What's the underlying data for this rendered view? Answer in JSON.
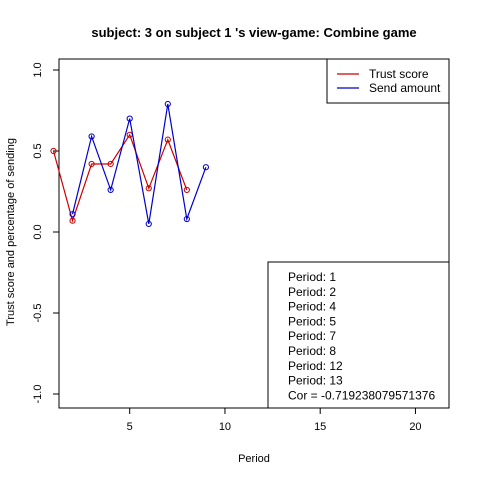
{
  "chart_data": {
    "type": "line",
    "title": "subject:  3  on subject  1 's view-game:  Combine game",
    "xlabel": "Period",
    "ylabel": "Trust score and percentage of sending",
    "xlim": [
      1,
      20
    ],
    "ylim": [
      -1.0,
      1.0
    ],
    "xticks": [
      5,
      10,
      15,
      20
    ],
    "xtick_labels": [
      "5",
      "10",
      "15",
      "20"
    ],
    "yticks": [
      -1.0,
      -0.5,
      0.0,
      0.5,
      1.0
    ],
    "ytick_labels": [
      "-1.0",
      "-0.5",
      "0.0",
      "0.5",
      "1.0"
    ],
    "grid": false,
    "legend_position": "top-right",
    "series": [
      {
        "name": "Trust score",
        "color": "#cc0000",
        "x": [
          1,
          2,
          3,
          4,
          5,
          6,
          7,
          8
        ],
        "y": [
          0.5,
          0.07,
          0.42,
          0.42,
          0.6,
          0.27,
          0.57,
          0.26
        ]
      },
      {
        "name": "Send amount",
        "color": "#0000cc",
        "x": [
          2,
          3,
          4,
          5,
          6,
          7,
          8,
          9
        ],
        "y": [
          0.11,
          0.59,
          0.26,
          0.7,
          0.05,
          0.79,
          0.08,
          0.4
        ]
      }
    ],
    "info_box": {
      "position": "bottom-right",
      "lines": [
        "Period:  1",
        "Period:  2",
        "Period:  4",
        "Period:  5",
        "Period:  7",
        "Period:  8",
        "Period:  12",
        "Period:  13",
        "Cor =  -0.719238079571376"
      ]
    }
  }
}
